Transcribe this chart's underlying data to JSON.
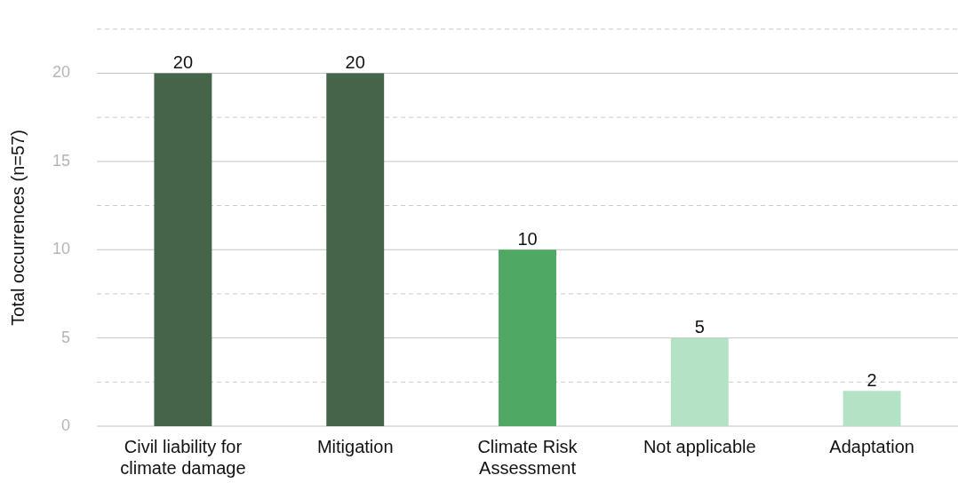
{
  "chart_data": {
    "type": "bar",
    "ylabel": "Total occurrences (n=57)",
    "categories": [
      "Civil liability for climate damage",
      "Mitigation",
      "Climate Risk Assessment",
      "Not applicable",
      "Adaptation"
    ],
    "values": [
      20,
      20,
      10,
      5,
      2
    ],
    "colors": [
      "#45654a",
      "#45654a",
      "#50a865",
      "#b3e3c4",
      "#b3e3c4"
    ],
    "ylim": [
      0,
      22.5
    ],
    "yticks": [
      0,
      {
        "value": 2.5,
        "label": null
      },
      5,
      {
        "value": 7.5,
        "label": null
      },
      10,
      {
        "value": 12.5,
        "label": null
      },
      15,
      {
        "value": 17.5,
        "label": null
      },
      20,
      {
        "value": 22.5,
        "label": null
      }
    ],
    "grid": true,
    "data_labels": true
  }
}
